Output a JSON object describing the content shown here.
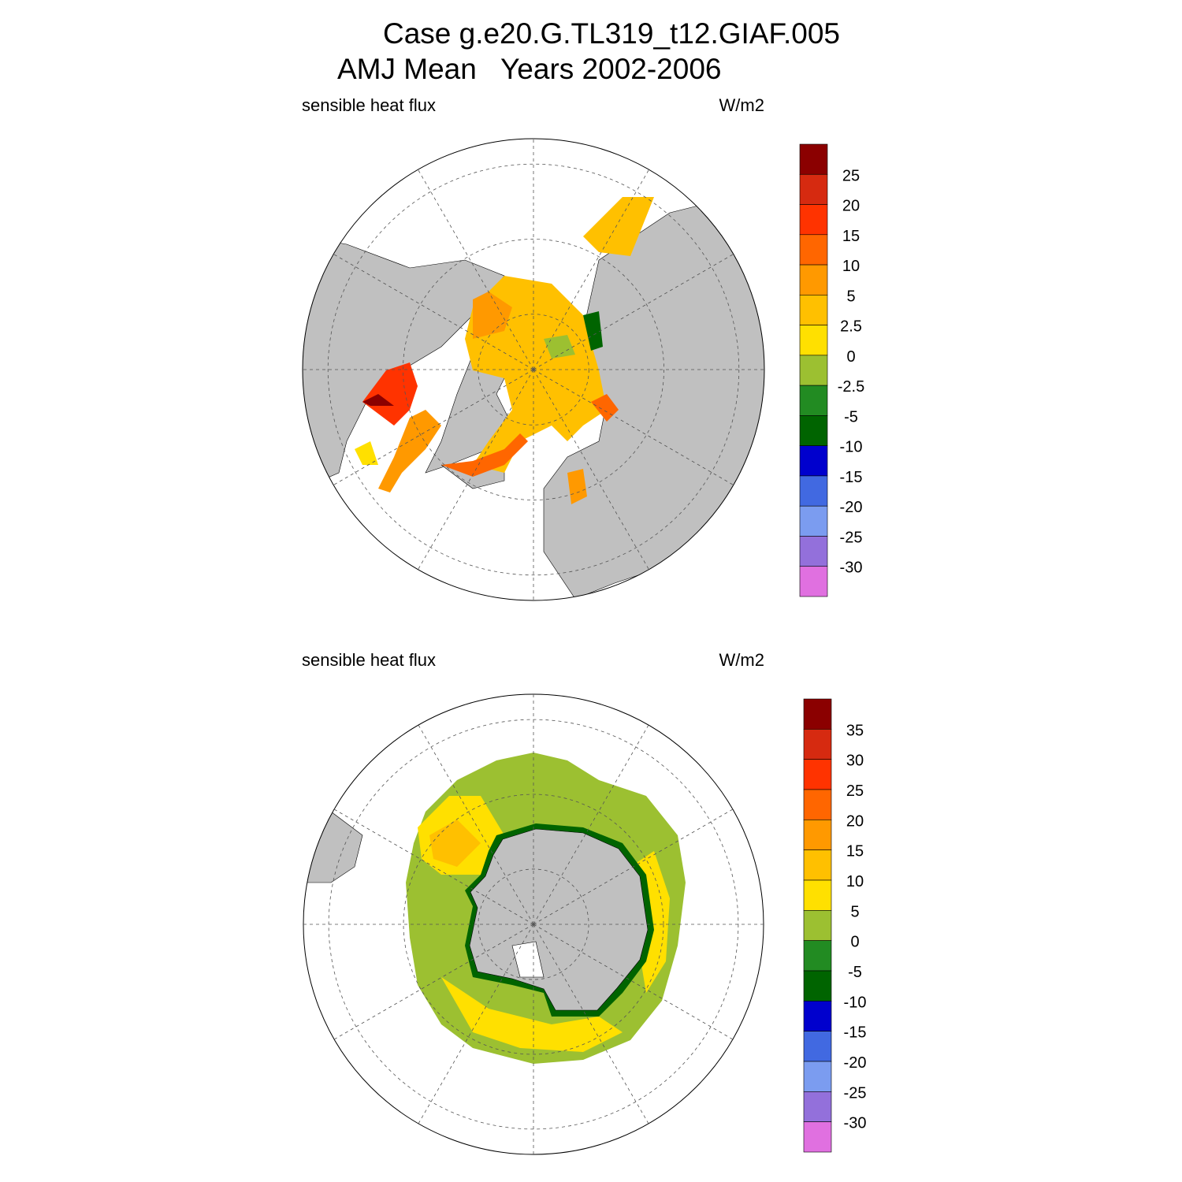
{
  "title": [
    "Case g.e20.G.TL319_t12.GIAF.005",
    "AMJ Mean   Years 2002-2006"
  ],
  "panels": [
    {
      "left_label": "sensible heat flux",
      "right_label": "W/m2",
      "colorbar": {
        "labels": [
          25,
          20,
          15,
          10,
          5,
          2.5,
          0,
          -2.5,
          -5,
          -10,
          -15,
          -20,
          -25,
          -30
        ],
        "colors": [
          "#8b0000",
          "#d62a10",
          "#ff3300",
          "#ff6600",
          "#ff9900",
          "#ffc000",
          "#ffe000",
          "#9cc031",
          "#228b22",
          "#006400",
          "#0000cd",
          "#4169e1",
          "#7b9cf0",
          "#9370db",
          "#e070e0"
        ]
      }
    },
    {
      "left_label": "sensible heat flux",
      "right_label": "W/m2",
      "colorbar": {
        "labels": [
          35,
          30,
          25,
          20,
          15,
          10,
          5,
          0,
          -5,
          -10,
          -15,
          -20,
          -25,
          -30
        ],
        "colors": [
          "#8b0000",
          "#d62a10",
          "#ff3300",
          "#ff6600",
          "#ff9900",
          "#ffc000",
          "#ffe000",
          "#9cc031",
          "#228b22",
          "#006400",
          "#0000cd",
          "#4169e1",
          "#7b9cf0",
          "#9370db",
          "#e070e0"
        ]
      }
    }
  ]
}
